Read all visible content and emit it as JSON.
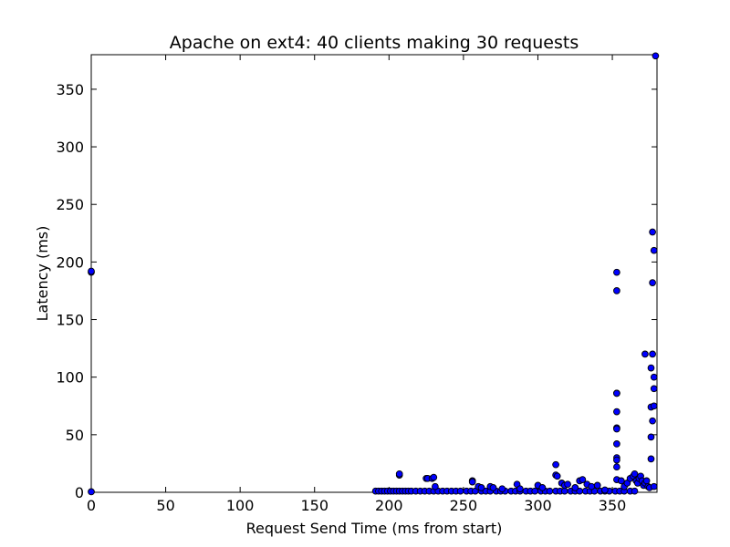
{
  "chart_data": {
    "type": "scatter",
    "title": "Apache on ext4: 40 clients making 30 requests",
    "xlabel": "Request Send Time (ms from start)",
    "ylabel": "Latency (ms)",
    "xlim": [
      0,
      380
    ],
    "ylim": [
      0,
      380
    ],
    "xticks": [
      0,
      50,
      100,
      150,
      200,
      250,
      300,
      350
    ],
    "yticks": [
      0,
      50,
      100,
      150,
      200,
      250,
      300,
      350
    ],
    "grid": false,
    "marker_color": "#0000ff",
    "marker_edge_color": "#000000",
    "series": [
      {
        "x": [
          0,
          0,
          0,
          191,
          193,
          195,
          197,
          199,
          201,
          203,
          205,
          207,
          209,
          211,
          213,
          215,
          218,
          221,
          224,
          227,
          230,
          233,
          236,
          239,
          242,
          245,
          248,
          252,
          255,
          258,
          262,
          265,
          268,
          272,
          275,
          278,
          282,
          285,
          288,
          292,
          295,
          298,
          302,
          305,
          308,
          312,
          315,
          318,
          322,
          325,
          328,
          332,
          335,
          338,
          342,
          345,
          348,
          352,
          355,
          358,
          362,
          365,
          207,
          207,
          225,
          226,
          229,
          230,
          231,
          256,
          256,
          260,
          262,
          268,
          270,
          276,
          286,
          288,
          300,
          303,
          312,
          312,
          313,
          316,
          318,
          320,
          325,
          328,
          330,
          333,
          336,
          340,
          345,
          353,
          353,
          353,
          353,
          353,
          353,
          353,
          353,
          353,
          353,
          353,
          353,
          356,
          358,
          360,
          362,
          364,
          365,
          366,
          367,
          368,
          369,
          370,
          371,
          372,
          373,
          374,
          375,
          372,
          376,
          376,
          376,
          376,
          377,
          377,
          377,
          377,
          378,
          378,
          378,
          378,
          378,
          379
        ],
        "y": [
          191,
          192,
          0.5,
          1,
          1,
          1,
          1,
          1,
          1,
          1,
          1,
          1,
          1,
          1,
          1,
          1,
          1,
          1,
          1,
          1,
          1,
          1,
          1,
          1,
          1,
          1,
          1,
          1,
          1,
          1,
          1,
          1,
          1,
          1,
          1,
          1,
          1,
          1,
          1,
          1,
          1,
          1,
          1,
          1,
          1,
          1,
          1,
          1,
          1,
          1,
          1,
          1,
          1,
          1,
          1,
          1,
          1,
          1,
          1,
          1,
          1,
          1,
          15,
          16,
          12,
          12,
          12,
          13,
          5,
          10,
          9,
          5,
          4,
          5,
          4,
          3,
          7,
          3,
          6,
          4,
          24,
          15,
          14,
          8,
          6,
          7,
          4,
          10,
          11,
          7,
          5,
          6,
          2,
          191,
          175,
          86,
          86,
          70,
          56,
          55,
          42,
          30,
          28,
          22,
          11,
          10,
          5,
          8,
          12,
          14,
          16,
          10,
          8,
          12,
          14,
          10,
          6,
          8,
          10,
          5,
          4,
          120,
          108,
          74,
          48,
          29,
          226,
          182,
          120,
          62,
          210,
          100,
          90,
          75,
          5,
          379
        ]
      }
    ]
  }
}
